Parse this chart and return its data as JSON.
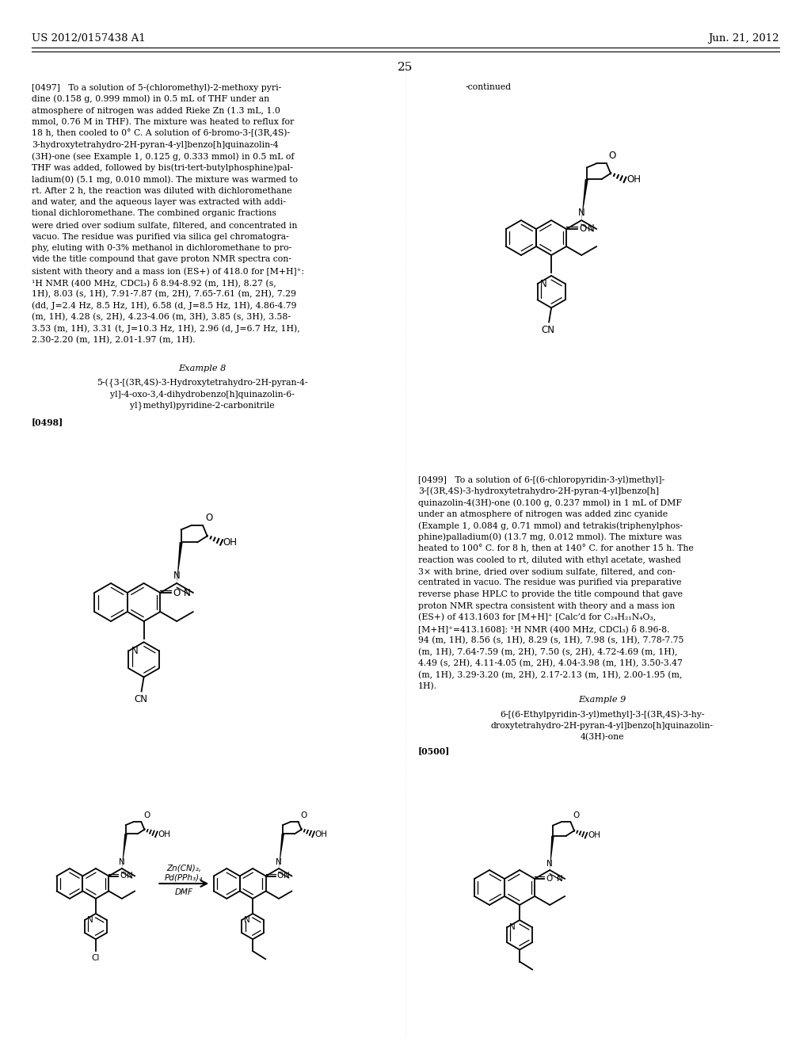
{
  "header_left": "US 2012/0157438 A1",
  "header_right": "Jun. 21, 2012",
  "page_number": "25",
  "bg_color": "#ffffff",
  "text_color": "#000000",
  "continued_label": "-continued",
  "example8_title": "Example 8",
  "example8_name_line1": "5-({3-[(3R,4S)-3-Hydroxytetrahydro-2H-pyran-4-",
  "example8_name_line2": "yl]-4-oxo-3,4-dihydrobenzo[h]quinazolin-6-",
  "example8_name_line3": "yl}methyl)pyridine-2-carbonitrile",
  "para_0498": "[0498]",
  "example9_title": "Example 9",
  "example9_name_line1": "6-[(6-Ethylpyridin-3-yl)methyl]-3-[(3R,4S)-3-hy-",
  "example9_name_line2": "droxytetrahydro-2H-pyran-4-yl]benzo[h]quinazolin-",
  "example9_name_line3": "4(3H)-one",
  "para_0500": "[0500]",
  "reagents_line1": "Zn(CN)₂,",
  "reagents_line2": "Pd(PPh₃)₄",
  "reagents_line3": "DMF",
  "left_text_lines": [
    "[0497]   To a solution of 5-(chloromethyl)-2-methoxy pyri-",
    "dine (0.158 g, 0.999 mmol) in 0.5 mL of THF under an",
    "atmosphere of nitrogen was added Rieke Zn (1.3 mL, 1.0",
    "mmol, 0.76 M in THF). The mixture was heated to reflux for",
    "18 h, then cooled to 0° C. A solution of 6-bromo-3-[(3R,4S)-",
    "3-hydroxytetrahydro-2H-pyran-4-yl]benzo[h]quinazolin-4",
    "(3H)-one (see Example 1, 0.125 g, 0.333 mmol) in 0.5 mL of",
    "THF was added, followed by bis(tri-tert-butylphosphine)pal-",
    "ladium(0) (5.1 mg, 0.010 mmol). The mixture was warmed to",
    "rt. After 2 h, the reaction was diluted with dichloromethane",
    "and water, and the aqueous layer was extracted with addi-",
    "tional dichloromethane. The combined organic fractions",
    "were dried over sodium sulfate, filtered, and concentrated in",
    "vacuo. The residue was purified via silica gel chromatogra-",
    "phy, eluting with 0-3% methanol in dichloromethane to pro-",
    "vide the title compound that gave proton NMR spectra con-",
    "sistent with theory and a mass ion (ES+) of 418.0 for [M+H]⁺:",
    "¹H NMR (400 MHz, CDCl₃) δ 8.94-8.92 (m, 1H), 8.27 (s,",
    "1H), 8.03 (s, 1H), 7.91-7.87 (m, 2H), 7.65-7.61 (m, 2H), 7.29",
    "(dd, J=2.4 Hz, 8.5 Hz, 1H), 6.58 (d, J=8.5 Hz, 1H), 4.86-4.79",
    "(m, 1H), 4.28 (s, 2H), 4.23-4.06 (m, 3H), 3.85 (s, 3H), 3.58-",
    "3.53 (m, 1H), 3.31 (t, J=10.3 Hz, 1H), 2.96 (d, J=6.7 Hz, 1H),",
    "2.30-2.20 (m, 1H), 2.01-1.97 (m, 1H)."
  ],
  "right_text_lines": [
    "[0499]   To a solution of 6-[(6-chloropyridin-3-yl)methyl]-",
    "3-[(3R,4S)-3-hydroxytetrahydro-2H-pyran-4-yl]benzo[h]",
    "quinazolin-4(3H)-one (0.100 g, 0.237 mmol) in 1 mL of DMF",
    "under an atmosphere of nitrogen was added zinc cyanide",
    "(Example 1, 0.084 g, 0.71 mmol) and tetrakis(triphenylphos-",
    "phine)palladium(0) (13.7 mg, 0.012 mmol). The mixture was",
    "heated to 100° C. for 8 h, then at 140° C. for another 15 h. The",
    "reaction was cooled to rt, diluted with ethyl acetate, washed",
    "3× with brine, dried over sodium sulfate, filtered, and con-",
    "centrated in vacuo. The residue was purified via preparative",
    "reverse phase HPLC to provide the title compound that gave",
    "proton NMR spectra consistent with theory and a mass ion",
    "(ES+) of 413.1603 for [M+H]⁺ [Calc’d for C₂₄H₂₁N₄O₃,",
    "[M+H]⁺=413.1608]: ¹H NMR (400 MHz, CDCl₃) δ 8.96-8.",
    "94 (m, 1H), 8.56 (s, 1H), 8.29 (s, 1H), 7.98 (s, 1H), 7.78-7.75",
    "(m, 1H), 7.64-7.59 (m, 2H), 7.50 (s, 2H), 4.72-4.69 (m, 1H),",
    "4.49 (s, 2H), 4.11-4.05 (m, 2H), 4.04-3.98 (m, 1H), 3.50-3.47",
    "(m, 1H), 3.29-3.20 (m, 2H), 2.17-2.13 (m, 1H), 2.00-1.95 (m,",
    "1H)."
  ]
}
